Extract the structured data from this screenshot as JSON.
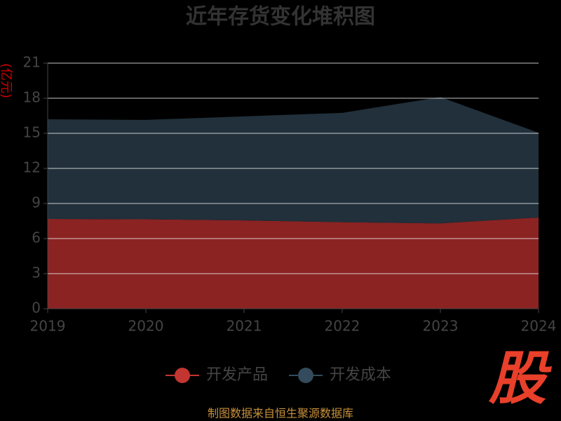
{
  "chart_data": {
    "type": "stacked_area",
    "title": "近年存货变化堆积图",
    "y_label": "(亿元)",
    "x": [
      "2019",
      "2020",
      "2021",
      "2022",
      "2023",
      "2024"
    ],
    "series": [
      {
        "name": "开发产品",
        "color": "#c23531",
        "fill": "#8b2323",
        "values": [
          7.68,
          7.65,
          7.55,
          7.4,
          7.3,
          7.8
        ]
      },
      {
        "name": "开发成本",
        "color": "#334b5c",
        "fill": "#21303a",
        "values": [
          8.52,
          8.5,
          8.9,
          9.35,
          10.8,
          7.25
        ]
      }
    ],
    "ylim": [
      0,
      21
    ],
    "yticks": [
      0,
      3,
      6,
      9,
      12,
      15,
      18,
      21
    ],
    "grid": true,
    "source": "制图数据来自恒生聚源数据库",
    "watermark": "股"
  }
}
